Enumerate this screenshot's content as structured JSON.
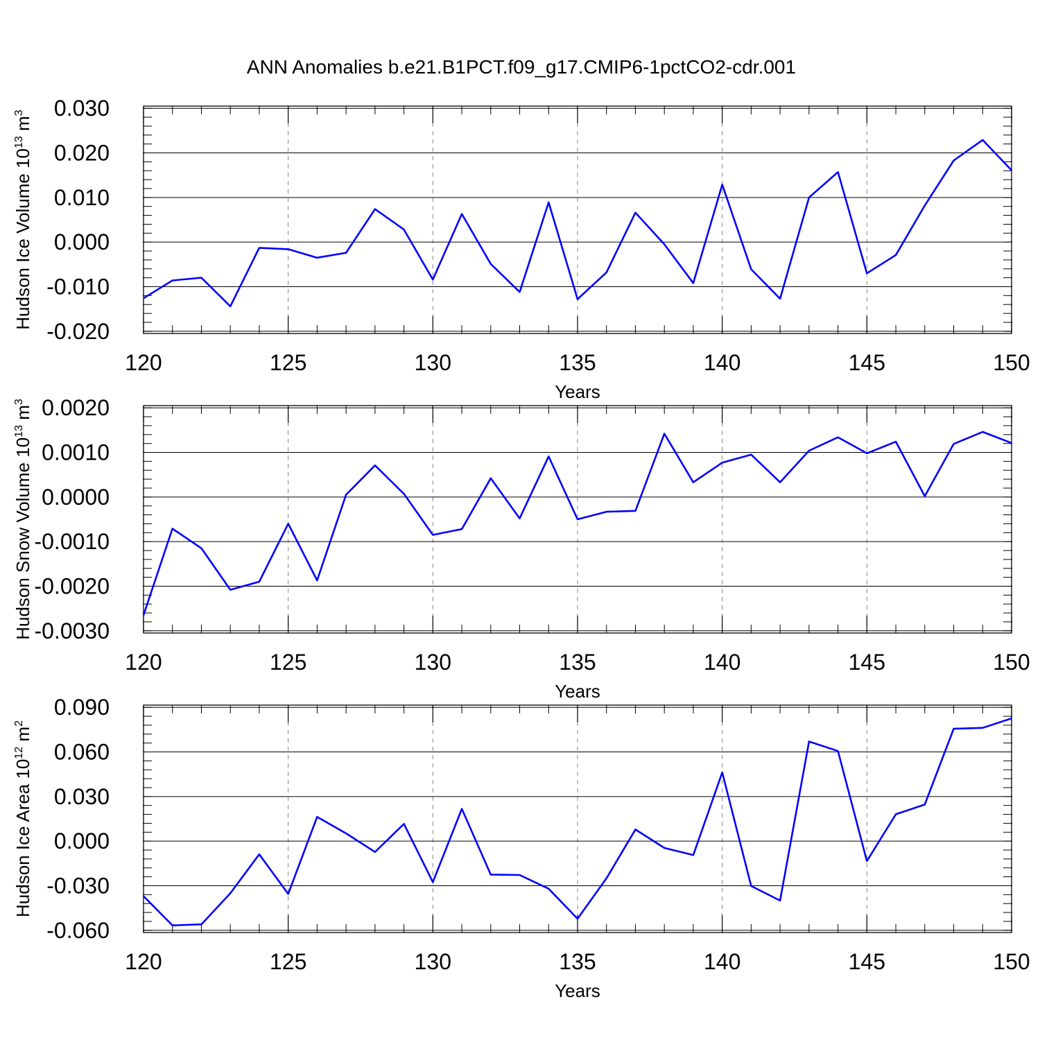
{
  "title": "ANN Anomalies b.e21.B1PCT.f09_g17.CMIP6-1pctCO2-cdr.001",
  "line_color": "#0000ff",
  "chart_data": [
    {
      "type": "line",
      "ylabel": "Hudson Ice Volume 10",
      "ylabel_exp": "13",
      "ylabel_unit": "m",
      "ylabel_unit_exp": "3",
      "xlabel": "Years",
      "xlim": [
        120,
        150
      ],
      "ylim": [
        -0.0205,
        0.0305
      ],
      "x_ticks": [
        "120",
        "125",
        "130",
        "135",
        "140",
        "145",
        "150"
      ],
      "y_ticks": [
        -0.02,
        -0.01,
        0.0,
        0.01,
        0.02,
        0.03
      ],
      "y_tick_labels": [
        "-0.020",
        "-0.010",
        "0.000",
        "0.010",
        "0.020",
        "0.030"
      ],
      "y_minor_step": 0.002,
      "x": [
        120,
        121,
        122,
        123,
        124,
        125,
        126,
        127,
        128,
        129,
        130,
        131,
        132,
        133,
        134,
        135,
        136,
        137,
        138,
        139,
        140,
        141,
        142,
        143,
        144,
        145,
        146,
        147,
        148,
        149,
        150
      ],
      "series": [
        {
          "values": [
            -0.0126,
            -0.0086,
            -0.008,
            -0.0144,
            -0.0013,
            -0.0016,
            -0.0035,
            -0.0024,
            0.0074,
            0.0028,
            -0.0084,
            0.0063,
            -0.0049,
            -0.0112,
            0.0089,
            -0.0128,
            -0.0068,
            0.0066,
            -0.0005,
            -0.0092,
            0.0129,
            -0.0061,
            -0.0127,
            0.01,
            0.0157,
            -0.007,
            -0.0029,
            0.0082,
            0.0183,
            0.0229,
            0.0161
          ]
        }
      ]
    },
    {
      "type": "line",
      "ylabel": "Hudson Snow Volume 10",
      "ylabel_exp": "13",
      "ylabel_unit": "m",
      "ylabel_unit_exp": "3",
      "xlabel": "Years",
      "xlim": [
        120,
        150
      ],
      "ylim": [
        -0.00305,
        0.00205
      ],
      "x_ticks": [
        "120",
        "125",
        "130",
        "135",
        "140",
        "145",
        "150"
      ],
      "y_ticks": [
        -0.003,
        -0.002,
        -0.001,
        0.0,
        0.001,
        0.002
      ],
      "y_tick_labels": [
        "-0.0030",
        "-0.0020",
        "-0.0010",
        "0.0000",
        "0.0010",
        "0.0020"
      ],
      "y_minor_step": 0.0002,
      "x": [
        120,
        121,
        122,
        123,
        124,
        125,
        126,
        127,
        128,
        129,
        130,
        131,
        132,
        133,
        134,
        135,
        136,
        137,
        138,
        139,
        140,
        141,
        142,
        143,
        144,
        145,
        146,
        147,
        148,
        149,
        150
      ],
      "series": [
        {
          "values": [
            -0.00265,
            -0.00071,
            -0.00115,
            -0.00208,
            -0.0019,
            -0.0006,
            -0.00187,
            5e-05,
            0.00071,
            7e-05,
            -0.00085,
            -0.00072,
            0.00042,
            -0.00048,
            0.00091,
            -0.0005,
            -0.00033,
            -0.00031,
            0.00142,
            0.00033,
            0.00077,
            0.00095,
            0.00033,
            0.00104,
            0.00134,
            0.00098,
            0.00124,
            2e-05,
            0.00119,
            0.00146,
            0.00121
          ]
        }
      ]
    },
    {
      "type": "line",
      "ylabel": "Hudson Ice Area 10",
      "ylabel_exp": "12",
      "ylabel_unit": "m",
      "ylabel_unit_exp": "2",
      "xlabel": "Years",
      "xlim": [
        120,
        150
      ],
      "ylim": [
        -0.0615,
        0.0915
      ],
      "x_ticks": [
        "120",
        "125",
        "130",
        "135",
        "140",
        "145",
        "150"
      ],
      "y_ticks": [
        -0.06,
        -0.03,
        0.0,
        0.03,
        0.06,
        0.09
      ],
      "y_tick_labels": [
        "-0.060",
        "-0.030",
        "0.000",
        "0.030",
        "0.060",
        "0.090"
      ],
      "y_minor_step": 0.006,
      "x": [
        120,
        121,
        122,
        123,
        124,
        125,
        126,
        127,
        128,
        129,
        130,
        131,
        132,
        133,
        134,
        135,
        136,
        137,
        138,
        139,
        140,
        141,
        142,
        143,
        144,
        145,
        146,
        147,
        148,
        149,
        150
      ],
      "series": [
        {
          "values": [
            -0.037,
            -0.0567,
            -0.056,
            -0.0351,
            -0.0089,
            -0.0355,
            0.0163,
            0.0052,
            -0.0073,
            0.0116,
            -0.0276,
            0.0217,
            -0.0225,
            -0.0228,
            -0.032,
            -0.0522,
            -0.025,
            0.0078,
            -0.0046,
            -0.0094,
            0.0462,
            -0.0302,
            -0.04,
            0.067,
            0.0606,
            -0.0134,
            0.0181,
            0.0246,
            0.0756,
            0.0762,
            0.0826
          ]
        }
      ]
    }
  ]
}
